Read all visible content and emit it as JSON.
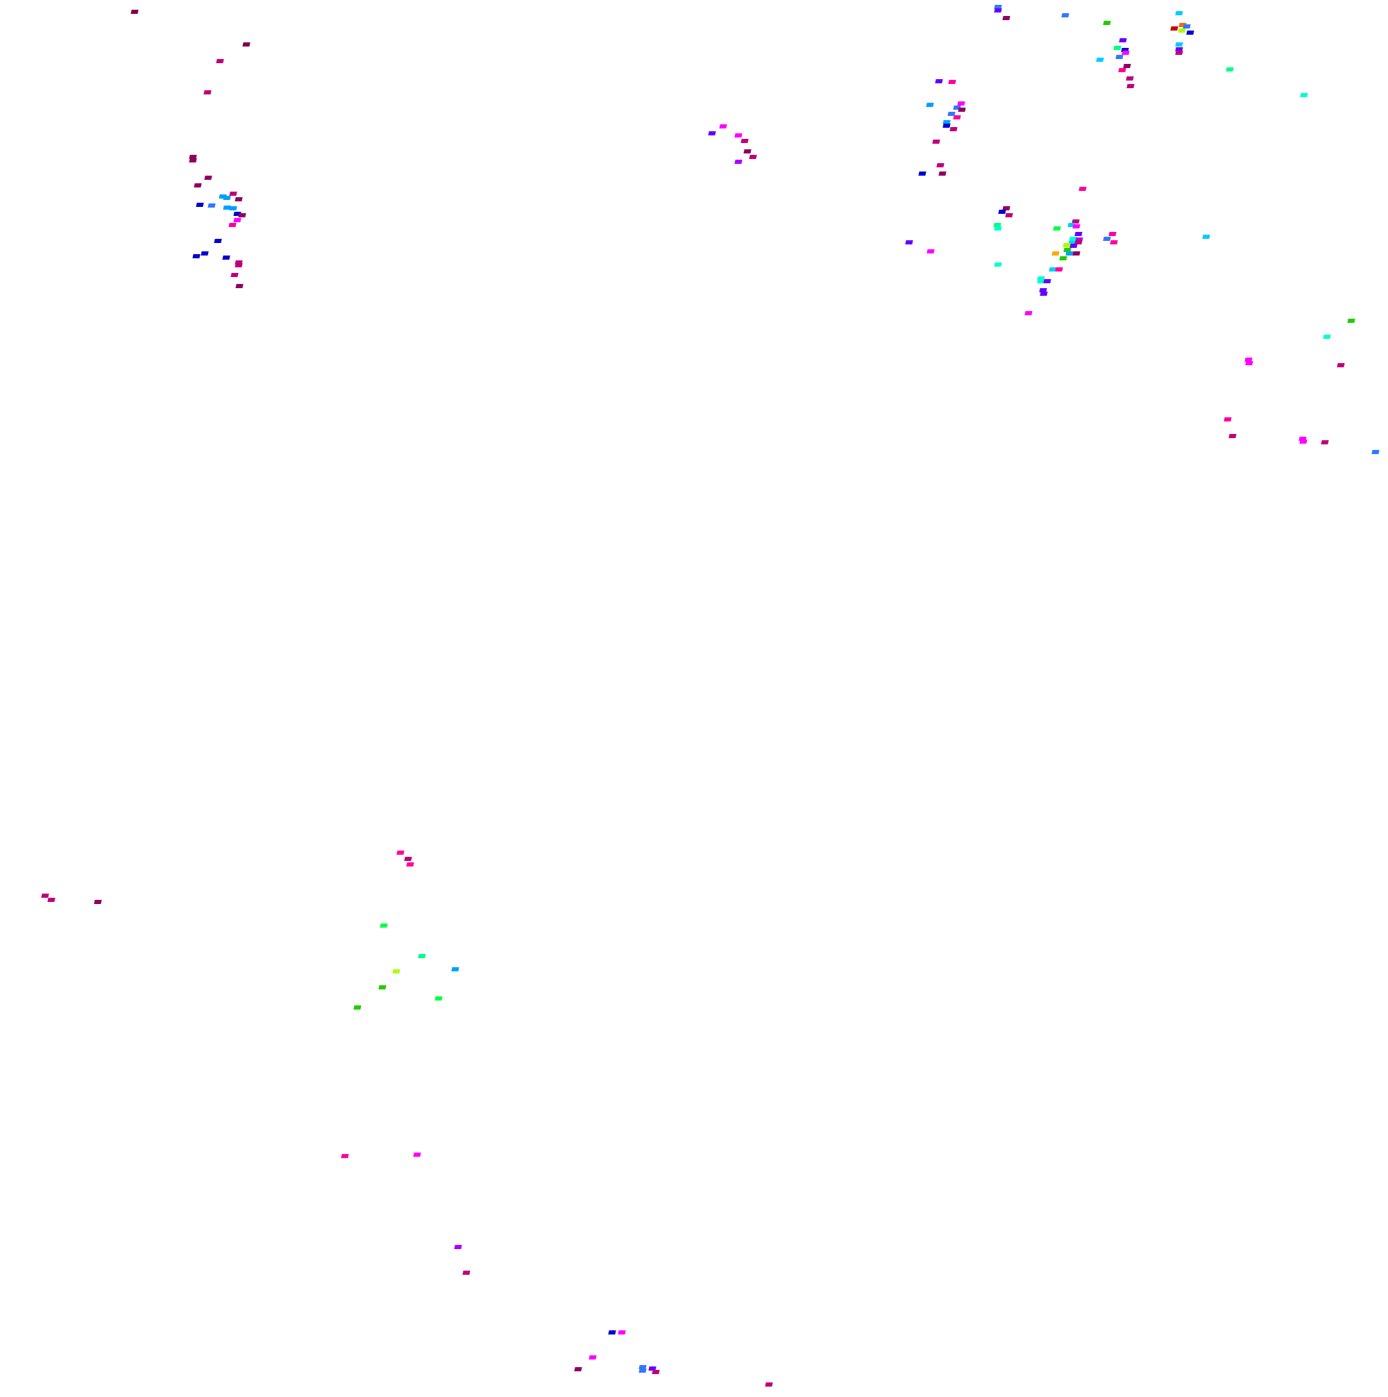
{
  "palette": {
    "maroon": "#900060",
    "dark_maroon": "#800050",
    "magenta_dark": "#c0007a",
    "pink": "#ff00a0",
    "magenta": "#ff00ff",
    "violet": "#aa00ff",
    "indigo": "#6600ff",
    "navy_blue": "#0000d0",
    "blue": "#3377ff",
    "sky": "#00a0ff",
    "cyan": "#00ccff",
    "aqua": "#00ffcc",
    "mint": "#00ff88",
    "green": "#00ff44",
    "dark_green": "#22cc00",
    "lime": "#aaff00",
    "orange": "#ffaa00",
    "red_orange": "#ff6600",
    "red": "#cc0000"
  }
}
